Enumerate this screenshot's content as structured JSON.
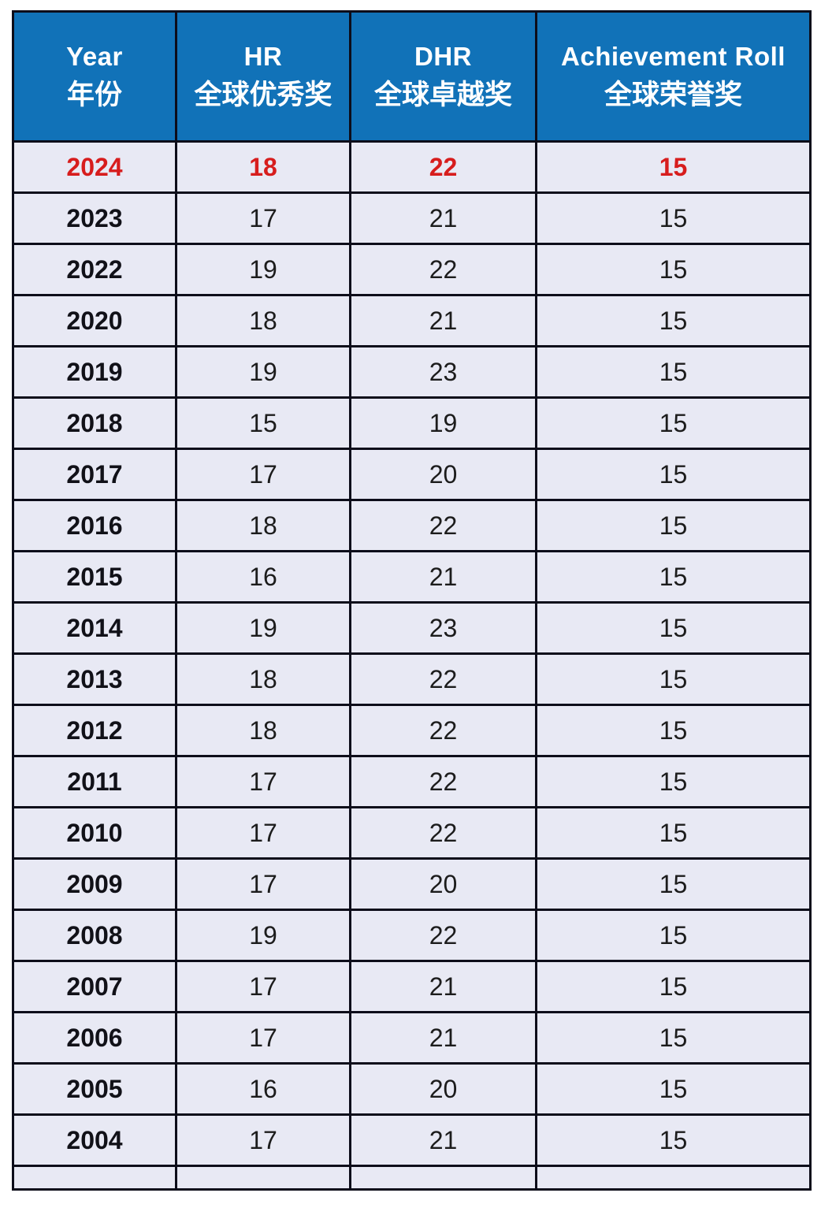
{
  "colors": {
    "header_bg": "#1172b8",
    "header_text": "#ffffff",
    "row_bg": "#e8e9f4",
    "grid_border": "#0d0d1a",
    "highlight_text": "#d71d1d",
    "body_text": "#1c1c1c"
  },
  "table": {
    "header": [
      {
        "en": "Year",
        "zh": "年份"
      },
      {
        "en": "HR",
        "zh": "全球优秀奖"
      },
      {
        "en": "DHR",
        "zh": "全球卓越奖"
      },
      {
        "en": "Achievement Roll",
        "zh": "全球荣誉奖"
      }
    ],
    "rows": [
      {
        "year": "2024",
        "hr": "18",
        "dhr": "22",
        "ar": "15",
        "highlight": true
      },
      {
        "year": "2023",
        "hr": "17",
        "dhr": "21",
        "ar": "15",
        "highlight": false
      },
      {
        "year": "2022",
        "hr": "19",
        "dhr": "22",
        "ar": "15",
        "highlight": false
      },
      {
        "year": "2020",
        "hr": "18",
        "dhr": "21",
        "ar": "15",
        "highlight": false
      },
      {
        "year": "2019",
        "hr": "19",
        "dhr": "23",
        "ar": "15",
        "highlight": false
      },
      {
        "year": "2018",
        "hr": "15",
        "dhr": "19",
        "ar": "15",
        "highlight": false
      },
      {
        "year": "2017",
        "hr": "17",
        "dhr": "20",
        "ar": "15",
        "highlight": false
      },
      {
        "year": "2016",
        "hr": "18",
        "dhr": "22",
        "ar": "15",
        "highlight": false
      },
      {
        "year": "2015",
        "hr": "16",
        "dhr": "21",
        "ar": "15",
        "highlight": false
      },
      {
        "year": "2014",
        "hr": "19",
        "dhr": "23",
        "ar": "15",
        "highlight": false
      },
      {
        "year": "2013",
        "hr": "18",
        "dhr": "22",
        "ar": "15",
        "highlight": false
      },
      {
        "year": "2012",
        "hr": "18",
        "dhr": "22",
        "ar": "15",
        "highlight": false
      },
      {
        "year": "2011",
        "hr": "17",
        "dhr": "22",
        "ar": "15",
        "highlight": false
      },
      {
        "year": "2010",
        "hr": "17",
        "dhr": "22",
        "ar": "15",
        "highlight": false
      },
      {
        "year": "2009",
        "hr": "17",
        "dhr": "20",
        "ar": "15",
        "highlight": false
      },
      {
        "year": "2008",
        "hr": "19",
        "dhr": "22",
        "ar": "15",
        "highlight": false
      },
      {
        "year": "2007",
        "hr": "17",
        "dhr": "21",
        "ar": "15",
        "highlight": false
      },
      {
        "year": "2006",
        "hr": "17",
        "dhr": "21",
        "ar": "15",
        "highlight": false
      },
      {
        "year": "2005",
        "hr": "16",
        "dhr": "20",
        "ar": "15",
        "highlight": false
      },
      {
        "year": "2004",
        "hr": "17",
        "dhr": "21",
        "ar": "15",
        "highlight": false
      }
    ]
  },
  "chart_data": {
    "type": "table",
    "title": "",
    "columns": [
      "Year 年份",
      "HR 全球优秀奖",
      "DHR 全球卓越奖",
      "Achievement Roll 全球荣誉奖"
    ],
    "rows": [
      [
        "2024",
        18,
        22,
        15
      ],
      [
        "2023",
        17,
        21,
        15
      ],
      [
        "2022",
        19,
        22,
        15
      ],
      [
        "2020",
        18,
        21,
        15
      ],
      [
        "2019",
        19,
        23,
        15
      ],
      [
        "2018",
        15,
        19,
        15
      ],
      [
        "2017",
        17,
        20,
        15
      ],
      [
        "2016",
        18,
        22,
        15
      ],
      [
        "2015",
        16,
        21,
        15
      ],
      [
        "2014",
        19,
        23,
        15
      ],
      [
        "2013",
        18,
        22,
        15
      ],
      [
        "2012",
        18,
        22,
        15
      ],
      [
        "2011",
        17,
        22,
        15
      ],
      [
        "2010",
        17,
        22,
        15
      ],
      [
        "2009",
        17,
        20,
        15
      ],
      [
        "2008",
        19,
        22,
        15
      ],
      [
        "2007",
        17,
        21,
        15
      ],
      [
        "2006",
        17,
        21,
        15
      ],
      [
        "2005",
        16,
        20,
        15
      ],
      [
        "2004",
        17,
        21,
        15
      ]
    ],
    "notes": "Row 2024 highlighted in red bold; header row white-on-blue; grid on; no 2021 row shown."
  }
}
